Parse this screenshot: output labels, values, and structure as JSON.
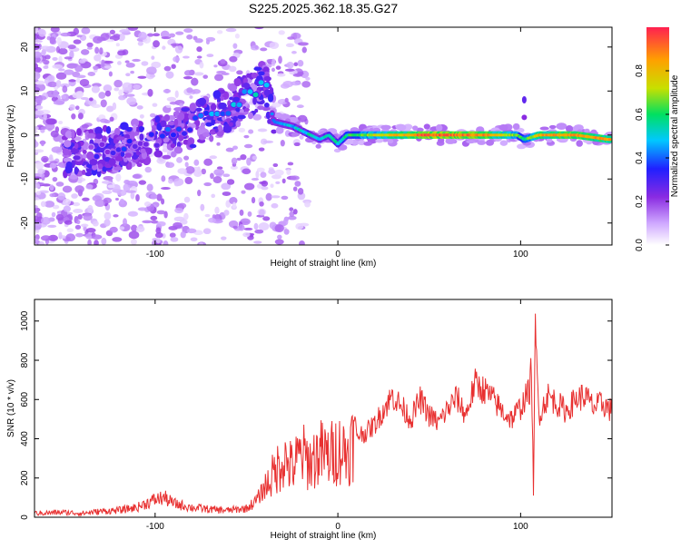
{
  "title": "S225.2025.362.18.35.G27",
  "colors": {
    "trace": "#e83030",
    "spectro_low": "#e9d8ff",
    "spectro_mid": "#5a1bd8",
    "spectro_high": "#e8203a"
  },
  "chart_data": [
    {
      "type": "heatmap",
      "name": "spectrogram",
      "xlabel": "Height of straight line (km)",
      "ylabel": "Frequency (Hz)",
      "xlim": [
        -166,
        150
      ],
      "ylim": [
        -25,
        24.5
      ],
      "xticks": [
        -100,
        0,
        100
      ],
      "xtick_labels": [
        "-100",
        "0",
        "100"
      ],
      "yticks": [
        -20,
        -10,
        0,
        10,
        20
      ],
      "ytick_labels": [
        "-20",
        "-10",
        "0",
        "10",
        "20"
      ],
      "colorbar": {
        "label": "Normalized spectral amplitude",
        "range": [
          0,
          1
        ],
        "ticks": [
          0.0,
          0.2,
          0.4,
          0.6,
          0.8
        ],
        "tick_labels": [
          "0.0",
          "0.2",
          "0.4",
          "0.6",
          "0.8"
        ],
        "colormap": [
          "#ffffff",
          "#cfa8ff",
          "#8a2be2",
          "#2020ff",
          "#00c8ff",
          "#00e060",
          "#c8e000",
          "#ffa000",
          "#ff2050"
        ]
      },
      "ridge": {
        "description": "dominant frequency track",
        "x": [
          -135,
          -120,
          -100,
          -80,
          -60,
          -45,
          -40,
          -35,
          -25,
          -15,
          -10,
          -5,
          0,
          5,
          20,
          50,
          80,
          98,
          102,
          110,
          130,
          148
        ],
        "y": [
          -4,
          -3,
          -1,
          2,
          6,
          10,
          12,
          3,
          2,
          0,
          -1,
          0,
          -2,
          0,
          0,
          0,
          0,
          0,
          -1,
          0,
          0,
          -1
        ],
        "amplitude": [
          0.2,
          0.25,
          0.28,
          0.3,
          0.4,
          0.45,
          0.5,
          0.45,
          0.5,
          0.55,
          0.5,
          0.55,
          0.55,
          0.6,
          0.75,
          0.95,
          0.9,
          0.7,
          0.6,
          0.85,
          0.9,
          0.85
        ]
      }
    },
    {
      "type": "line",
      "name": "snr",
      "xlabel": "Height of straight line (km)",
      "ylabel": "SNR (10 * v/v)",
      "xlim": [
        -166,
        150
      ],
      "ylim": [
        0,
        1110
      ],
      "xticks": [
        -100,
        0,
        100
      ],
      "xtick_labels": [
        "-100",
        "0",
        "100"
      ],
      "yticks": [
        0,
        200,
        400,
        600,
        800,
        1000
      ],
      "ytick_labels": [
        "0",
        "200",
        "400",
        "600",
        "800",
        "1000"
      ],
      "series": [
        {
          "name": "SNR",
          "x": [
            -166,
            -150,
            -140,
            -130,
            -120,
            -110,
            -100,
            -95,
            -90,
            -85,
            -80,
            -70,
            -60,
            -50,
            -45,
            -40,
            -35,
            -30,
            -25,
            -20,
            -15,
            -10,
            -5,
            0,
            5,
            10,
            15,
            20,
            25,
            30,
            35,
            40,
            45,
            50,
            55,
            60,
            65,
            70,
            75,
            80,
            85,
            90,
            95,
            100,
            105,
            106,
            107,
            108,
            110,
            115,
            120,
            125,
            130,
            135,
            140,
            145,
            150
          ],
          "y": [
            20,
            25,
            20,
            30,
            35,
            50,
            90,
            100,
            70,
            60,
            50,
            40,
            35,
            45,
            80,
            150,
            220,
            300,
            250,
            320,
            280,
            330,
            310,
            350,
            330,
            420,
            430,
            470,
            550,
            620,
            560,
            500,
            600,
            520,
            480,
            550,
            610,
            520,
            680,
            650,
            600,
            540,
            500,
            560,
            650,
            780,
            120,
            950,
            520,
            620,
            580,
            540,
            600,
            620,
            560,
            580,
            540
          ]
        }
      ]
    }
  ]
}
